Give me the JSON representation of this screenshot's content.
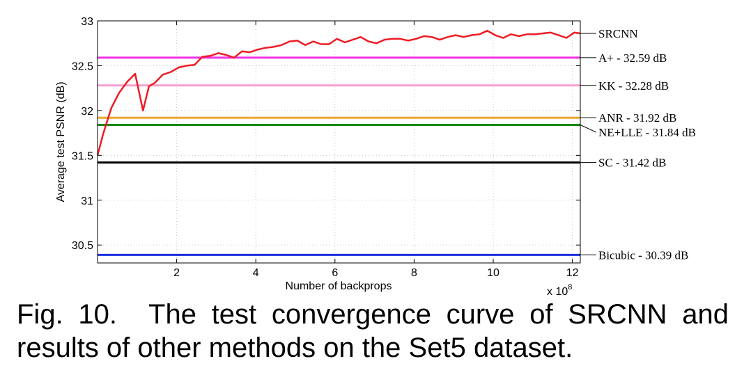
{
  "chart_data": {
    "type": "line",
    "xlabel": "Number of backprops",
    "x_exponent_label": "x 10",
    "x_exponent_power": "8",
    "ylabel": "Average test PSNR (dB)",
    "xlim": [
      0,
      12.2
    ],
    "ylim": [
      30.3,
      33
    ],
    "grid": true,
    "legend_placement": "right of plot, labels aligned to line end",
    "x_ticks": [
      2,
      4,
      6,
      8,
      10,
      12
    ],
    "y_ticks": [
      30.5,
      31,
      31.5,
      32,
      32.5,
      33
    ],
    "series": [
      {
        "name": "SRCNN",
        "color": "#ee1c25",
        "x": [
          0,
          0.15,
          0.35,
          0.55,
          0.75,
          0.95,
          1.15,
          1.3,
          1.45,
          1.65,
          1.85,
          2.05,
          2.25,
          2.45,
          2.65,
          2.85,
          3.05,
          3.25,
          3.45,
          3.65,
          3.85,
          4.05,
          4.25,
          4.45,
          4.65,
          4.85,
          5.05,
          5.25,
          5.45,
          5.65,
          5.85,
          6.05,
          6.25,
          6.45,
          6.65,
          6.85,
          7.05,
          7.25,
          7.45,
          7.65,
          7.85,
          8.05,
          8.25,
          8.45,
          8.65,
          8.85,
          9.05,
          9.25,
          9.45,
          9.65,
          9.85,
          10.05,
          10.25,
          10.45,
          10.65,
          10.85,
          11.05,
          11.25,
          11.45,
          11.65,
          11.85,
          12.05,
          12.2
        ],
        "y": [
          31.5,
          31.75,
          32.03,
          32.2,
          32.32,
          32.41,
          32.0,
          32.27,
          32.31,
          32.4,
          32.43,
          32.48,
          32.5,
          32.51,
          32.6,
          32.61,
          32.64,
          32.62,
          32.59,
          32.66,
          32.65,
          32.68,
          32.7,
          32.71,
          32.73,
          32.77,
          32.78,
          32.73,
          32.77,
          32.74,
          32.74,
          32.8,
          32.76,
          32.79,
          32.82,
          32.77,
          32.75,
          32.79,
          32.8,
          32.8,
          32.78,
          32.8,
          32.83,
          32.82,
          32.79,
          32.82,
          32.84,
          32.82,
          32.84,
          32.85,
          32.89,
          32.84,
          32.81,
          32.85,
          32.83,
          32.85,
          32.85,
          32.86,
          32.87,
          32.84,
          32.81,
          32.87,
          32.86
        ]
      }
    ],
    "reference_lines": [
      {
        "name": "A+",
        "label": "A+ - 32.59 dB",
        "value": 32.59,
        "color": "#f032e6"
      },
      {
        "name": "KK",
        "label": "KK - 32.28 dB",
        "value": 32.28,
        "color": "#f99fcf"
      },
      {
        "name": "ANR",
        "label": "ANR - 31.92 dB",
        "value": 31.92,
        "color": "#f0a830"
      },
      {
        "name": "NE+LLE",
        "label": "NE+LLE - 31.84 dB",
        "value": 31.84,
        "color": "#138a13"
      },
      {
        "name": "SC",
        "label": "SC - 31.42 dB",
        "value": 31.42,
        "color": "#000000"
      },
      {
        "name": "Bicubic",
        "label": "Bicubic - 30.39 dB",
        "value": 30.39,
        "color": "#1c2fe0"
      }
    ],
    "srcnn_label": "SRCNN"
  },
  "caption": {
    "fig_number": "Fig. 10.",
    "text": "The test convergence curve of SRCNN and results of other methods on the Set5 dataset."
  }
}
